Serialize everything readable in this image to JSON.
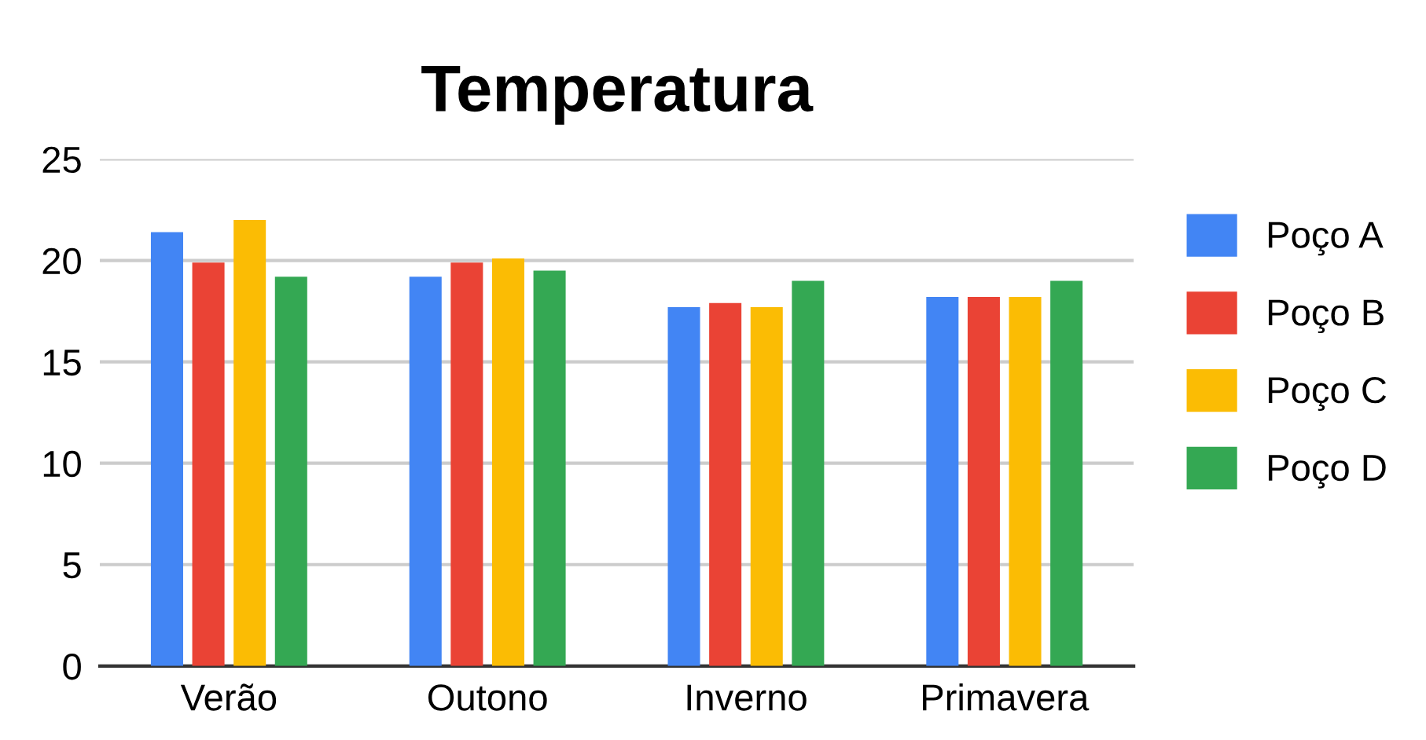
{
  "chart_data": {
    "type": "bar",
    "title": "Temperatura",
    "categories": [
      "Verão",
      "Outono",
      "Inverno",
      "Primavera"
    ],
    "series": [
      {
        "name": "Poço A",
        "color": "#4285f4",
        "values": [
          21.4,
          19.2,
          17.7,
          18.2
        ]
      },
      {
        "name": "Poço B",
        "color": "#ea4335",
        "values": [
          19.9,
          19.9,
          17.9,
          18.2
        ]
      },
      {
        "name": "Poço C",
        "color": "#fbbc04",
        "values": [
          22.0,
          20.1,
          17.7,
          18.2
        ]
      },
      {
        "name": "Poço D",
        "color": "#34a853",
        "values": [
          19.2,
          19.5,
          19.0,
          19.0
        ]
      }
    ],
    "ylim": [
      0,
      25
    ],
    "yticks": [
      0,
      5,
      10,
      15,
      20,
      25
    ],
    "grid": "y",
    "legend": "right"
  }
}
